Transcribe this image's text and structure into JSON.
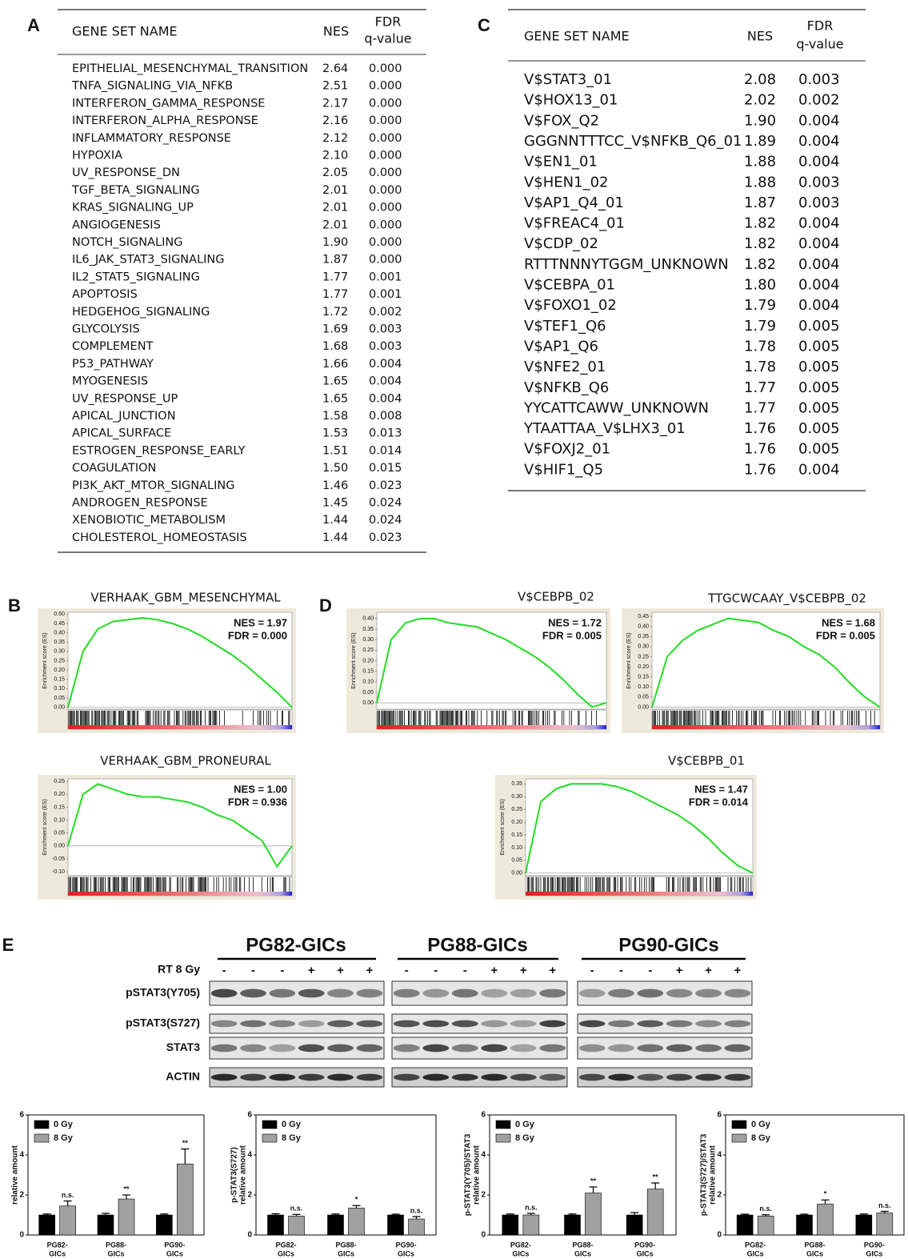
{
  "panel_labels": [
    "A",
    "B",
    "C",
    "D",
    "E"
  ],
  "table_a": {
    "headers": [
      "GENE SET NAME",
      "NES",
      "FDR",
      "q-value"
    ],
    "rows": [
      [
        "EPITHELIAL_MESENCHYMAL_TRANSITION",
        "2.64",
        "0.000"
      ],
      [
        "TNFA_SIGNALING_VIA_NFKB",
        "2.51",
        "0.000"
      ],
      [
        "INTERFERON_GAMMA_RESPONSE",
        "2.17",
        "0.000"
      ],
      [
        "INTERFERON_ALPHA_RESPONSE",
        "2.16",
        "0.000"
      ],
      [
        "INFLAMMATORY_RESPONSE",
        "2.12",
        "0.000"
      ],
      [
        "HYPOXIA",
        "2.10",
        "0.000"
      ],
      [
        "UV_RESPONSE_DN",
        "2.05",
        "0.000"
      ],
      [
        "TGF_BETA_SIGNALING",
        "2.01",
        "0.000"
      ],
      [
        "KRAS_SIGNALING_UP",
        "2.01",
        "0.000"
      ],
      [
        "ANGIOGENESIS",
        "2.01",
        "0.000"
      ],
      [
        "NOTCH_SIGNALING",
        "1.90",
        "0.000"
      ],
      [
        "IL6_JAK_STAT3_SIGNALING",
        "1.87",
        "0.000"
      ],
      [
        "IL2_STAT5_SIGNALING",
        "1.77",
        "0.001"
      ],
      [
        "APOPTOSIS",
        "1.77",
        "0.001"
      ],
      [
        "HEDGEHOG_SIGNALING",
        "1.72",
        "0.002"
      ],
      [
        "GLYCOLYSIS",
        "1.69",
        "0.003"
      ],
      [
        "COMPLEMENT",
        "1.68",
        "0.003"
      ],
      [
        "P53_PATHWAY",
        "1.66",
        "0.004"
      ],
      [
        "MYOGENESIS",
        "1.65",
        "0.004"
      ],
      [
        "UV_RESPONSE_UP",
        "1.65",
        "0.004"
      ],
      [
        "APICAL_JUNCTION",
        "1.58",
        "0.008"
      ],
      [
        "APICAL_SURFACE",
        "1.53",
        "0.013"
      ],
      [
        "ESTROGEN_RESPONSE_EARLY",
        "1.51",
        "0.014"
      ],
      [
        "COAGULATION",
        "1.50",
        "0.015"
      ],
      [
        "PI3K_AKT_MTOR_SIGNALING",
        "1.46",
        "0.023"
      ],
      [
        "ANDROGEN_RESPONSE",
        "1.45",
        "0.024"
      ],
      [
        "XENOBIOTIC_METABOLISM",
        "1.44",
        "0.024"
      ],
      [
        "CHOLESTEROL_HOMEOSTASIS",
        "1.44",
        "0.023"
      ]
    ]
  },
  "table_c": {
    "headers": [
      "GENE SET NAME",
      "NES",
      "FDR",
      "q-value"
    ],
    "rows": [
      [
        "V$STAT3_01",
        "2.08",
        "0.003"
      ],
      [
        "V$HOX13_01",
        "2.02",
        "0.002"
      ],
      [
        "V$FOX_Q2",
        "1.90",
        "0.004"
      ],
      [
        "GGGNNTTTCC_V$NFKB_Q6_01",
        "1.89",
        "0.004"
      ],
      [
        "V$EN1_01",
        "1.88",
        "0.004"
      ],
      [
        "V$HEN1_02",
        "1.88",
        "0.003"
      ],
      [
        "V$AP1_Q4_01",
        "1.87",
        "0.003"
      ],
      [
        "V$FREAC4_01",
        "1.82",
        "0.004"
      ],
      [
        "V$CDP_02",
        "1.82",
        "0.004"
      ],
      [
        "RTTTNNNYTGGM_UNKNOWN",
        "1.82",
        "0.004"
      ],
      [
        "V$CEBPA_01",
        "1.80",
        "0.004"
      ],
      [
        "V$FOXO1_02",
        "1.79",
        "0.004"
      ],
      [
        "V$TEF1_Q6",
        "1.79",
        "0.005"
      ],
      [
        "V$AP1_Q6",
        "1.78",
        "0.005"
      ],
      [
        "V$NFE2_01",
        "1.78",
        "0.005"
      ],
      [
        "V$NFKB_Q6",
        "1.77",
        "0.005"
      ],
      [
        "YYCATTCAWW_UNKNOWN",
        "1.77",
        "0.005"
      ],
      [
        "YTAATTAA_V$LHX3_01",
        "1.76",
        "0.005"
      ],
      [
        "V$FOXJ2_01",
        "1.76",
        "0.005"
      ],
      [
        "V$HIF1_Q5",
        "1.76",
        "0.004"
      ]
    ]
  },
  "blot": {
    "rt_label": "RT 8 Gy",
    "groups": [
      {
        "name": "PG82-GICs",
        "signs": [
          "-",
          "-",
          "-",
          "+",
          "+",
          "+"
        ]
      },
      {
        "name": "PG88-GICs",
        "signs": [
          "-",
          "-",
          "-",
          "+",
          "+",
          "+"
        ]
      },
      {
        "name": "PG90-GICs",
        "signs": [
          "-",
          "-",
          "-",
          "+",
          "+",
          "+"
        ]
      }
    ],
    "rows": [
      "pSTAT3(Y705)",
      "pSTAT3(S727)",
      "STAT3",
      "ACTIN"
    ]
  },
  "chart_data": [
    {
      "type": "line",
      "title": "VERHAAK_GBM_MESENCHYMAL",
      "annotations": [
        "NES = 1.97",
        "FDR = 0.000"
      ],
      "ylabel": "Enrichment score (ES)",
      "color": "#22dd22",
      "ylim": [
        -0.01,
        0.51
      ],
      "yticks": [
        {
          "value": 0,
          "label": "0.00"
        },
        {
          "value": 0.05,
          "label": "0.05"
        },
        {
          "value": 0.1,
          "label": "0.10"
        },
        {
          "value": 0.15,
          "label": "0.15"
        },
        {
          "value": 0.2,
          "label": "0.20"
        },
        {
          "value": 0.25,
          "label": "0.25"
        },
        {
          "value": 0.3,
          "label": "0.30"
        },
        {
          "value": 0.35,
          "label": "0.35"
        },
        {
          "value": 0.4,
          "label": "0.40"
        },
        {
          "value": 0.45,
          "label": "0.45"
        },
        {
          "value": 0.5,
          "label": "0.50"
        }
      ],
      "values": [
        0,
        0.3,
        0.42,
        0.46,
        0.47,
        0.48,
        0.47,
        0.45,
        0.42,
        0.38,
        0.33,
        0.28,
        0.22,
        0.15,
        0.08,
        0
      ]
    },
    {
      "type": "line",
      "title": "VERHAAK_GBM_PRONEURAL",
      "annotations": [
        "NES = 1.00",
        "FDR = 0.936"
      ],
      "ylabel": "Enrichment score (ES)",
      "color": "#22dd22",
      "ylim": [
        -0.115,
        0.26
      ],
      "yticks": [
        {
          "value": -0.1,
          "label": "-0.10"
        },
        {
          "value": -0.05,
          "label": "-0.05"
        },
        {
          "value": 0,
          "label": "0.00"
        },
        {
          "value": 0.05,
          "label": "0.05"
        },
        {
          "value": 0.1,
          "label": "0.10"
        },
        {
          "value": 0.15,
          "label": "0.15"
        },
        {
          "value": 0.2,
          "label": "0.20"
        },
        {
          "value": 0.25,
          "label": "0.25"
        }
      ],
      "values": [
        0,
        0.2,
        0.24,
        0.22,
        0.2,
        0.19,
        0.19,
        0.18,
        0.17,
        0.15,
        0.12,
        0.1,
        0.06,
        0.02,
        -0.08,
        0
      ]
    },
    {
      "type": "line",
      "title": "V$CEBPB_02",
      "annotations": [
        "NES = 1.72",
        "FDR = 0.005"
      ],
      "ylabel": "Enrichment score (ES)",
      "color": "#22dd22",
      "ylim": [
        -0.03,
        0.43
      ],
      "yticks": [
        {
          "value": 0,
          "label": "0.00"
        },
        {
          "value": 0.05,
          "label": "0.05"
        },
        {
          "value": 0.1,
          "label": "0.10"
        },
        {
          "value": 0.15,
          "label": "0.15"
        },
        {
          "value": 0.2,
          "label": "0.20"
        },
        {
          "value": 0.25,
          "label": "0.25"
        },
        {
          "value": 0.3,
          "label": "0.30"
        },
        {
          "value": 0.35,
          "label": "0.35"
        },
        {
          "value": 0.4,
          "label": "0.40"
        }
      ],
      "values": [
        0,
        0.3,
        0.38,
        0.4,
        0.4,
        0.38,
        0.37,
        0.36,
        0.33,
        0.3,
        0.26,
        0.22,
        0.17,
        0.11,
        0.04,
        -0.02,
        0
      ]
    },
    {
      "type": "line",
      "title": "TTGCWCAAY_V$CEBPB_02",
      "annotations": [
        "NES = 1.68",
        "FDR = 0.005"
      ],
      "ylabel": "Enrichment score (ES)",
      "color": "#22dd22",
      "ylim": [
        -0.01,
        0.47
      ],
      "yticks": [
        {
          "value": 0,
          "label": "0.00"
        },
        {
          "value": 0.05,
          "label": "0.05"
        },
        {
          "value": 0.1,
          "label": "0.10"
        },
        {
          "value": 0.15,
          "label": "0.15"
        },
        {
          "value": 0.2,
          "label": "0.20"
        },
        {
          "value": 0.25,
          "label": "0.25"
        },
        {
          "value": 0.3,
          "label": "0.30"
        },
        {
          "value": 0.35,
          "label": "0.35"
        },
        {
          "value": 0.4,
          "label": "0.40"
        },
        {
          "value": 0.45,
          "label": "0.45"
        }
      ],
      "values": [
        0,
        0.25,
        0.33,
        0.38,
        0.41,
        0.44,
        0.43,
        0.42,
        0.38,
        0.35,
        0.3,
        0.26,
        0.2,
        0.12,
        0.05,
        0
      ]
    },
    {
      "type": "line",
      "title": "V$CEBPB_01",
      "annotations": [
        "NES = 1.47",
        "FDR = 0.014"
      ],
      "ylabel": "Enrichment score (ES)",
      "color": "#22dd22",
      "ylim": [
        -0.01,
        0.37
      ],
      "yticks": [
        {
          "value": 0,
          "label": "0.00"
        },
        {
          "value": 0.05,
          "label": "0.05"
        },
        {
          "value": 0.1,
          "label": "0.10"
        },
        {
          "value": 0.15,
          "label": "0.15"
        },
        {
          "value": 0.2,
          "label": "0.20"
        },
        {
          "value": 0.25,
          "label": "0.25"
        },
        {
          "value": 0.3,
          "label": "0.30"
        },
        {
          "value": 0.35,
          "label": "0.35"
        }
      ],
      "values": [
        0,
        0.28,
        0.33,
        0.35,
        0.35,
        0.35,
        0.34,
        0.32,
        0.29,
        0.26,
        0.23,
        0.19,
        0.14,
        0.08,
        0.03,
        0
      ]
    },
    {
      "type": "bar",
      "ylabel": [
        "relative amount"
      ],
      "categories": [
        [
          "PG82-",
          "GICs"
        ],
        [
          "PG88-",
          "GICs"
        ],
        [
          "PG90-",
          "GICs"
        ]
      ],
      "ylim": [
        0,
        6
      ],
      "yticks": [
        0,
        2,
        4,
        6
      ],
      "series": [
        {
          "name": "0 Gy",
          "color": "#000000",
          "values": [
            1,
            1,
            1
          ],
          "errors": [
            0.05,
            0.08,
            0.05
          ]
        },
        {
          "name": "8 Gy",
          "color": "#a0a0a0",
          "values": [
            1.45,
            1.8,
            3.55
          ],
          "errors": [
            0.25,
            0.2,
            0.75
          ],
          "annotations": [
            "n.s.",
            "**",
            "**"
          ]
        }
      ]
    },
    {
      "type": "bar",
      "ylabel": [
        "p-STAT3(S727)",
        "relative amount"
      ],
      "categories": [
        [
          "PG82-",
          "GICs"
        ],
        [
          "PG88-",
          "GICs"
        ],
        [
          "PG90-",
          "GICs"
        ]
      ],
      "ylim": [
        0,
        6
      ],
      "yticks": [
        0,
        2,
        4,
        6
      ],
      "series": [
        {
          "name": "0 Gy",
          "color": "#000000",
          "values": [
            1,
            1,
            1
          ],
          "errors": [
            0.06,
            0.05,
            0.04
          ]
        },
        {
          "name": "8 Gy",
          "color": "#a0a0a0",
          "values": [
            0.95,
            1.35,
            0.8
          ],
          "errors": [
            0.08,
            0.12,
            0.12
          ],
          "annotations": [
            "n.s.",
            "*",
            "n.s."
          ]
        }
      ]
    },
    {
      "type": "bar",
      "ylabel": [
        "p-STAT3(Y705)/STAT3",
        "relative amount"
      ],
      "categories": [
        [
          "PG82-",
          "GICs"
        ],
        [
          "PG88-",
          "GICs"
        ],
        [
          "PG90-",
          "GICs"
        ]
      ],
      "ylim": [
        0,
        6
      ],
      "yticks": [
        0,
        2,
        4,
        6
      ],
      "series": [
        {
          "name": "0 Gy",
          "color": "#000000",
          "values": [
            1,
            1,
            1
          ],
          "errors": [
            0.05,
            0.05,
            0.12
          ]
        },
        {
          "name": "8 Gy",
          "color": "#a0a0a0",
          "values": [
            1,
            2.1,
            2.3
          ],
          "errors": [
            0.08,
            0.3,
            0.3
          ],
          "annotations": [
            "n.s.",
            "**",
            "**"
          ]
        }
      ]
    },
    {
      "type": "bar",
      "ylabel": [
        "p-STAT3(S727)/STAT3",
        "relative amount"
      ],
      "categories": [
        [
          "PG82-",
          "GICs"
        ],
        [
          "PG88-",
          "GICs"
        ],
        [
          "PG90-",
          "GICs"
        ]
      ],
      "ylim": [
        0,
        6
      ],
      "yticks": [
        0,
        2,
        4,
        6
      ],
      "series": [
        {
          "name": "0 Gy",
          "color": "#000000",
          "values": [
            1,
            1,
            1
          ],
          "errors": [
            0.04,
            0.04,
            0.05
          ]
        },
        {
          "name": "8 Gy",
          "color": "#a0a0a0",
          "values": [
            0.95,
            1.55,
            1.1
          ],
          "errors": [
            0.06,
            0.2,
            0.08
          ],
          "annotations": [
            "n.s.",
            "*",
            "n.s."
          ]
        }
      ]
    }
  ]
}
